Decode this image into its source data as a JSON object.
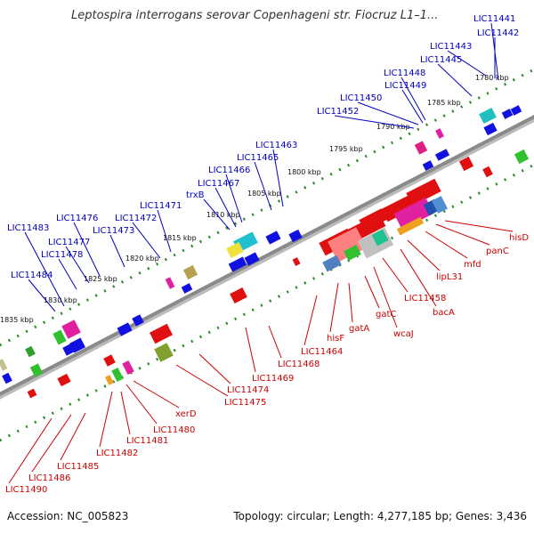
{
  "header": {
    "title": "Leptospira interrogans serovar Copenhageni str. Fiocruz L1–1..."
  },
  "footer": {
    "accession": "Accession: NC_005823",
    "summary": "Topology: circular; Length: 4,277,185 bp; Genes: 3,436"
  },
  "colors": {
    "top_strand": "#1010e0",
    "bottom_strand": "#e01010",
    "top_label": "#0000bb",
    "bottom_label": "#cc0000",
    "tick_major": "#2a8a2a",
    "tick_minor": "#2a8a2a",
    "backbone": "#8a8a8a"
  },
  "scale_labels": [
    "1780 kbp",
    "1785 kbp",
    "1790 kbp",
    "1795 kbp",
    "1800 kbp",
    "1805 kbp",
    "1810 kbp",
    "1815 kbp",
    "1820 kbp",
    "1825 kbp",
    "1830 kbp",
    "1835 kbp"
  ],
  "top_gene_labels": [
    "LIC11441",
    "LIC11442",
    "LIC11443",
    "LIC11445",
    "LIC11448",
    "LIC11449",
    "LIC11450",
    "LIC11452",
    "LIC11463",
    "LIC11465",
    "LIC11466",
    "LIC11467",
    "trxB",
    "LIC11471",
    "LIC11472",
    "LIC11473",
    "LIC11476",
    "LIC11477",
    "LIC11478",
    "LIC11483",
    "LIC11484"
  ],
  "bottom_gene_labels": [
    "hisD",
    "panC",
    "mfd",
    "lipL31",
    "bacA",
    "LIC11458",
    "wcaJ",
    "gatC",
    "gatA",
    "hisF",
    "LIC11464",
    "LIC11468",
    "LIC11469",
    "LIC11474",
    "LIC11475",
    "xerD",
    "LIC11480",
    "LIC11481",
    "LIC11482",
    "LIC11485",
    "LIC11486",
    "LIC11490"
  ]
}
